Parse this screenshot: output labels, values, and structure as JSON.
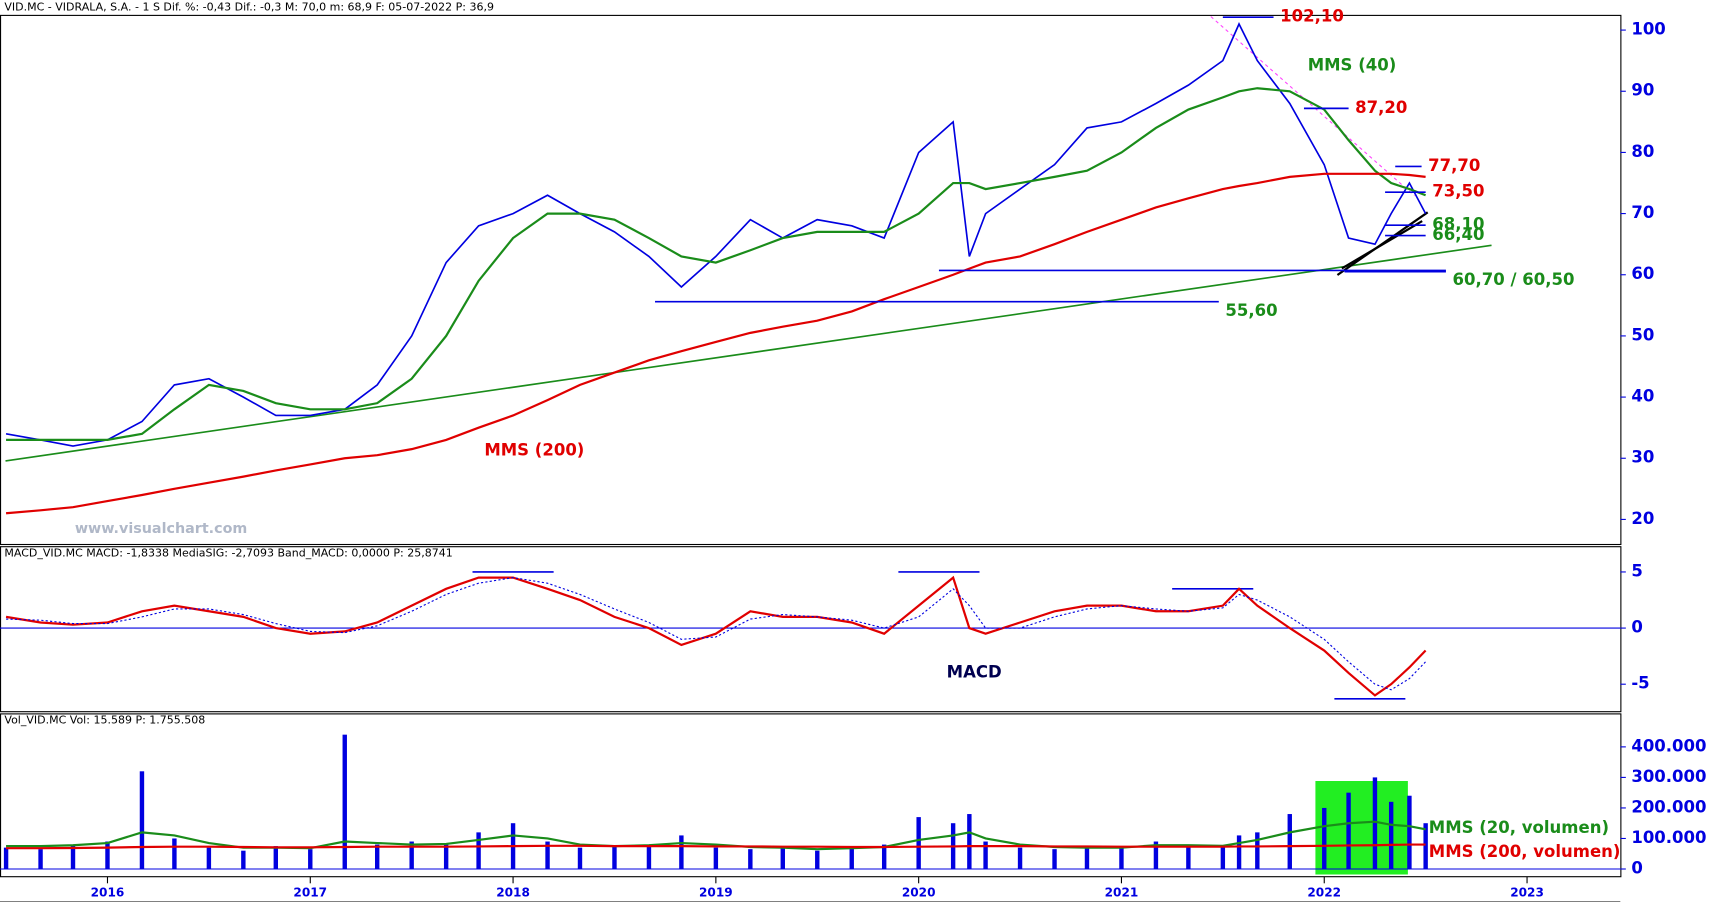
{
  "chart_data": [
    {
      "type": "line",
      "header": "VID.MC - VIDRALA, S.A. -  1 S  Dif. %: -0,43  Dif.: -0,3  M: 70,0  m: 68,9  F: 05-07-2022  P: 36,9",
      "watermark": "www.visualchart.com",
      "xlim": [
        2015.47,
        2023.46
      ],
      "ylim": [
        15.9,
        102.4
      ],
      "yticks": [
        20,
        30,
        40,
        50,
        60,
        70,
        80,
        90,
        100
      ],
      "x": [
        2015.5,
        2015.67,
        2015.83,
        2016.0,
        2016.17,
        2016.33,
        2016.5,
        2016.67,
        2016.83,
        2017.0,
        2017.17,
        2017.33,
        2017.5,
        2017.67,
        2017.83,
        2018.0,
        2018.17,
        2018.33,
        2018.5,
        2018.67,
        2018.83,
        2019.0,
        2019.17,
        2019.33,
        2019.5,
        2019.67,
        2019.83,
        2020.0,
        2020.17,
        2020.25,
        2020.33,
        2020.5,
        2020.67,
        2020.83,
        2021.0,
        2021.17,
        2021.33,
        2021.5,
        2021.58,
        2021.67,
        2021.83,
        2022.0,
        2022.12,
        2022.25,
        2022.33,
        2022.42,
        2022.5
      ],
      "series": [
        {
          "name": "VID.MC",
          "color": "#0000e0",
          "values": [
            34,
            33,
            32,
            33,
            36,
            42,
            43,
            40,
            37,
            37,
            38,
            42,
            50,
            62,
            68,
            70,
            73,
            70,
            67,
            63,
            58,
            63,
            69,
            66,
            69,
            68,
            66,
            80,
            85,
            63,
            70,
            74,
            78,
            84,
            85,
            88,
            91,
            95,
            101,
            95,
            88,
            78,
            66,
            65,
            70,
            75,
            70
          ]
        },
        {
          "name": "MMS (40)",
          "color": "#1a8c1a",
          "values": [
            33,
            33,
            33,
            33,
            34,
            38,
            42,
            41,
            39,
            38,
            38,
            39,
            43,
            50,
            59,
            66,
            70,
            70,
            69,
            66,
            63,
            62,
            64,
            66,
            67,
            67,
            67,
            70,
            75,
            75,
            74,
            75,
            76,
            77,
            80,
            84,
            87,
            89,
            90,
            90.5,
            90,
            87,
            82,
            77,
            75,
            74,
            73
          ]
        },
        {
          "name": "MMS (200)",
          "color": "#e00000",
          "values": [
            21,
            21.5,
            22,
            23,
            24,
            25,
            26,
            27,
            28,
            29,
            30,
            30.5,
            31.5,
            33,
            35,
            37,
            39.5,
            42,
            44,
            46,
            47.5,
            49,
            50.5,
            51.5,
            52.5,
            54,
            56,
            58,
            60,
            61,
            62,
            63,
            65,
            67,
            69,
            71,
            72.5,
            74,
            74.5,
            75,
            76,
            76.5,
            76.5,
            76.5,
            76.5,
            76.3,
            76
          ]
        }
      ],
      "levels": [
        {
          "label": "102,10",
          "values": [
            102.1
          ],
          "from": 2021.5,
          "to": 2021.75,
          "color": "#e00000"
        },
        {
          "label": "87,20",
          "values": [
            87.2
          ],
          "from": 2021.9,
          "to": 2022.12,
          "color": "#e00000"
        },
        {
          "label": "77,70",
          "values": [
            77.7
          ],
          "from": 2022.35,
          "to": 2022.48,
          "color": "#e00000"
        },
        {
          "label": "73,50",
          "values": [
            73.5
          ],
          "from": 2022.3,
          "to": 2022.5,
          "color": "#e00000"
        },
        {
          "label": "68,10",
          "values": [
            68.1
          ],
          "from": 2022.3,
          "to": 2022.5,
          "color": "#1a8c1a"
        },
        {
          "label": "66,40",
          "values": [
            66.4
          ],
          "from": 2022.3,
          "to": 2022.5,
          "color": "#1a8c1a"
        },
        {
          "label": "60,70 / 60,50",
          "values": [
            60.7,
            60.5
          ],
          "from": 2020.1,
          "to": 2022.6,
          "color": "#1a8c1a"
        },
        {
          "label": "55,60",
          "values": [
            55.6
          ],
          "from": 2018.7,
          "to": 2021.48,
          "color": "#1a8c1a"
        }
      ]
    },
    {
      "type": "line",
      "header": "MACD_VID.MC  MACD: -1,8338  MediaSIG: -2,7093  Band_MACD: 0,0000  P: 25,8741",
      "label": "MACD",
      "xlim": [
        2015.47,
        2023.46
      ],
      "ylim": [
        -7.45,
        7.25
      ],
      "yticks": [
        -5,
        0,
        5
      ],
      "x": [
        2015.5,
        2015.67,
        2015.83,
        2016.0,
        2016.17,
        2016.33,
        2016.5,
        2016.67,
        2016.83,
        2017.0,
        2017.17,
        2017.33,
        2017.5,
        2017.67,
        2017.83,
        2018.0,
        2018.17,
        2018.33,
        2018.5,
        2018.67,
        2018.83,
        2019.0,
        2019.17,
        2019.33,
        2019.5,
        2019.67,
        2019.83,
        2020.0,
        2020.17,
        2020.25,
        2020.33,
        2020.5,
        2020.67,
        2020.83,
        2021.0,
        2021.17,
        2021.33,
        2021.5,
        2021.58,
        2021.67,
        2021.83,
        2022.0,
        2022.12,
        2022.25,
        2022.33,
        2022.42,
        2022.5
      ],
      "series": [
        {
          "name": "MACD",
          "color": "#e00000",
          "values": [
            1,
            0.5,
            0.3,
            0.5,
            1.5,
            2,
            1.5,
            1,
            0,
            -0.5,
            -0.3,
            0.5,
            2,
            3.5,
            4.5,
            4.5,
            3.5,
            2.5,
            1,
            0,
            -1.5,
            -0.5,
            1.5,
            1,
            1,
            0.5,
            -0.5,
            2,
            4.5,
            0,
            -0.5,
            0.5,
            1.5,
            2,
            2,
            1.5,
            1.5,
            2,
            3.5,
            2,
            0,
            -2,
            -4,
            -6,
            -5,
            -3.5,
            -2
          ]
        },
        {
          "name": "MediaSIG",
          "color": "#0000e0",
          "values": [
            0.8,
            0.7,
            0.4,
            0.4,
            1,
            1.7,
            1.7,
            1.2,
            0.4,
            -0.3,
            -0.4,
            0.2,
            1.5,
            3,
            4,
            4.5,
            4,
            3,
            1.7,
            0.5,
            -1,
            -0.8,
            0.8,
            1.2,
            1,
            0.7,
            0,
            1,
            3.5,
            2,
            0,
            0,
            1,
            1.7,
            2,
            1.7,
            1.5,
            1.8,
            3,
            2.5,
            1,
            -1,
            -3,
            -5,
            -5.5,
            -4.5,
            -3
          ]
        }
      ],
      "hlines": [
        {
          "value": 5,
          "from": 2017.8,
          "to": 2018.2
        },
        {
          "value": 5,
          "from": 2019.9,
          "to": 2020.3
        },
        {
          "value": 3.5,
          "from": 2021.25,
          "to": 2021.65
        },
        {
          "value": -6.3,
          "from": 2022.05,
          "to": 2022.4
        }
      ]
    },
    {
      "type": "bar",
      "header": "Vol_VID.MC  Vol: 15.589  P: 1.755.508",
      "xlim": [
        2015.47,
        2023.46
      ],
      "ylim": [
        -25200,
        508000
      ],
      "xticks": [
        2016,
        2017,
        2018,
        2019,
        2020,
        2021,
        2022,
        2023
      ],
      "yticks": [
        {
          "value": 0,
          "label": "0"
        },
        {
          "value": 100000,
          "label": "100.000"
        },
        {
          "value": 200000,
          "label": "200.000"
        },
        {
          "value": 300000,
          "label": "300.000"
        },
        {
          "value": 400000,
          "label": "400.000"
        }
      ],
      "x": [
        2015.5,
        2015.67,
        2015.83,
        2016.0,
        2016.17,
        2016.33,
        2016.5,
        2016.67,
        2016.83,
        2017.0,
        2017.17,
        2017.33,
        2017.5,
        2017.67,
        2017.83,
        2018.0,
        2018.17,
        2018.33,
        2018.5,
        2018.67,
        2018.83,
        2019.0,
        2019.17,
        2019.33,
        2019.5,
        2019.67,
        2019.83,
        2020.0,
        2020.17,
        2020.25,
        2020.33,
        2020.5,
        2020.67,
        2020.83,
        2021.0,
        2021.17,
        2021.33,
        2021.5,
        2021.58,
        2021.67,
        2021.83,
        2022.0,
        2022.12,
        2022.25,
        2022.33,
        2022.42,
        2022.5
      ],
      "values": [
        70000,
        65000,
        80000,
        90000,
        320000,
        100000,
        70000,
        60000,
        75000,
        65000,
        440000,
        80000,
        90000,
        85000,
        120000,
        150000,
        90000,
        70000,
        75000,
        80000,
        110000,
        70000,
        65000,
        75000,
        60000,
        70000,
        80000,
        170000,
        150000,
        180000,
        90000,
        70000,
        65000,
        75000,
        70000,
        90000,
        80000,
        75000,
        110000,
        120000,
        180000,
        200000,
        250000,
        300000,
        220000,
        240000,
        150000
      ],
      "color": "#0000e0",
      "series": [
        {
          "name": "MMS (20, volumen)",
          "color": "#1a8c1a",
          "values": [
            75000,
            75000,
            78000,
            85000,
            120000,
            110000,
            85000,
            70000,
            70000,
            68000,
            90000,
            85000,
            80000,
            82000,
            95000,
            110000,
            100000,
            80000,
            75000,
            78000,
            85000,
            80000,
            72000,
            70000,
            65000,
            68000,
            72000,
            95000,
            110000,
            120000,
            100000,
            80000,
            72000,
            70000,
            70000,
            78000,
            78000,
            76000,
            85000,
            95000,
            120000,
            140000,
            150000,
            155000,
            145000,
            140000,
            130000
          ]
        },
        {
          "name": "MMS (200, volumen)",
          "color": "#e00000",
          "values": [
            68000,
            68000,
            69000,
            70000,
            72000,
            73000,
            73000,
            72000,
            71000,
            71000,
            72000,
            73000,
            73000,
            73000,
            74000,
            75000,
            76000,
            76000,
            75000,
            75000,
            75000,
            74000,
            74000,
            73000,
            73000,
            72000,
            72000,
            73000,
            74000,
            75000,
            75000,
            75000,
            74000,
            74000,
            73000,
            73000,
            73000,
            73000,
            74000,
            74000,
            75000,
            76000,
            77000,
            78000,
            79000,
            80000,
            80000
          ]
        }
      ]
    }
  ]
}
